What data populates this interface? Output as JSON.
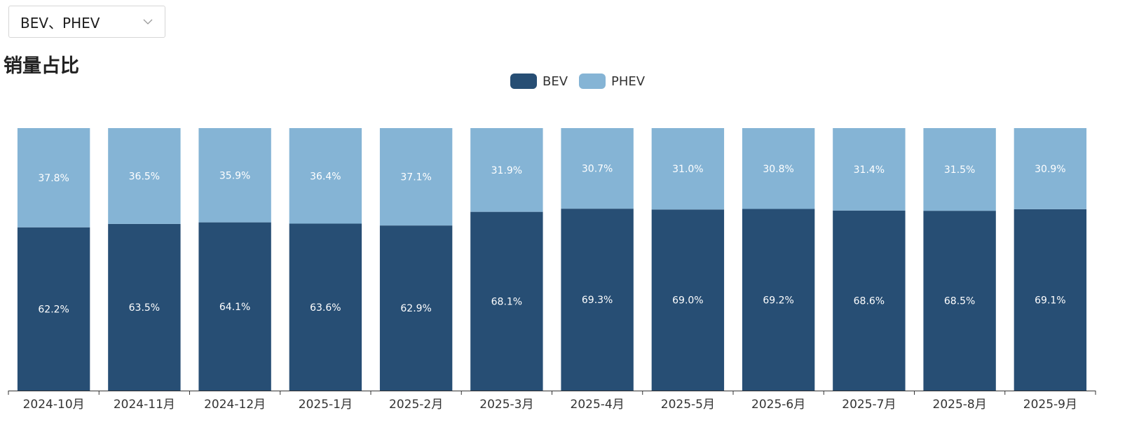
{
  "filter": {
    "selected": "BEV、PHEV"
  },
  "chart_data": {
    "type": "bar",
    "stacked": true,
    "title": "销量占比",
    "categories": [
      "2024-10月",
      "2024-11月",
      "2024-12月",
      "2025-1月",
      "2025-2月",
      "2025-3月",
      "2025-4月",
      "2025-5月",
      "2025-6月",
      "2025-7月",
      "2025-8月",
      "2025-9月"
    ],
    "series": [
      {
        "name": "BEV",
        "color": "#274e74",
        "values": [
          62.2,
          63.5,
          64.1,
          63.6,
          62.9,
          68.1,
          69.3,
          69.0,
          69.2,
          68.6,
          68.5,
          69.1
        ]
      },
      {
        "name": "PHEV",
        "color": "#85b4d5",
        "values": [
          37.8,
          36.5,
          35.9,
          36.4,
          37.1,
          31.9,
          30.7,
          31.0,
          30.8,
          31.4,
          31.5,
          30.9
        ]
      }
    ],
    "ylim": [
      0,
      100
    ],
    "value_suffix": "%",
    "grid": false,
    "legend_position": "top-center"
  }
}
